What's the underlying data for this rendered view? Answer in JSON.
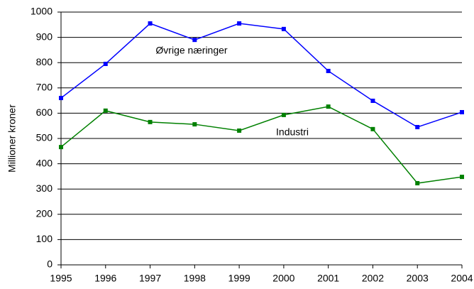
{
  "chart_data": {
    "type": "line",
    "y_label": "Millioner kroner",
    "x": [
      1995,
      1996,
      1997,
      1998,
      1999,
      2000,
      2001,
      2002,
      2003,
      2004
    ],
    "series": [
      {
        "name": "Øvrige næringer",
        "color": "#0000ff",
        "values": [
          660,
          795,
          955,
          890,
          955,
          933,
          767,
          649,
          545,
          604
        ]
      },
      {
        "name": "Industri",
        "color": "#008000",
        "values": [
          466,
          610,
          565,
          556,
          531,
          593,
          626,
          537,
          323,
          348
        ]
      }
    ],
    "xlim": [
      1995,
      2004
    ],
    "xticks": [
      1995,
      1996,
      1997,
      1998,
      1999,
      2000,
      2001,
      2002,
      2003,
      2004
    ],
    "ylim": [
      0,
      1000
    ],
    "yticks": [
      0,
      100,
      200,
      300,
      400,
      500,
      600,
      700,
      800,
      900,
      1000
    ],
    "grid": true
  }
}
